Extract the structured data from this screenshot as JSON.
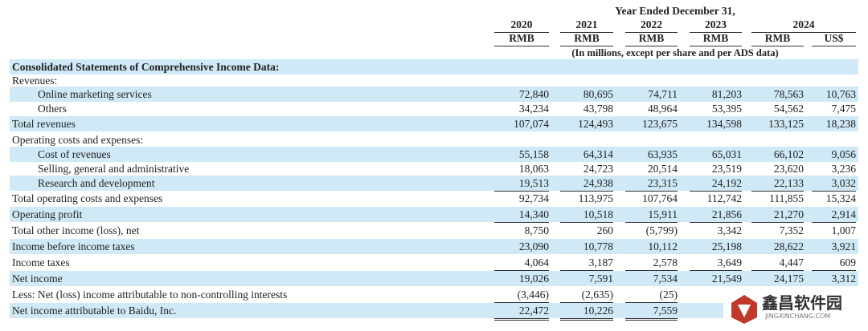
{
  "header": {
    "title": "Year Ended December 31,",
    "years": [
      "2020",
      "2021",
      "2022",
      "2023",
      "2024"
    ],
    "currencies": [
      "RMB",
      "RMB",
      "RMB",
      "RMB",
      "RMB",
      "US$"
    ],
    "note": "(In millions, except per share and per ADS data)"
  },
  "table": {
    "section": "Consolidated Statements of Comprehensive Income Data:",
    "rows": [
      {
        "label": "Revenues:",
        "values": []
      },
      {
        "label": "Online marketing services",
        "values": [
          "72,840",
          "80,695",
          "74,711",
          "81,203",
          "78,563",
          "10,763"
        ]
      },
      {
        "label": "Others",
        "values": [
          "34,234",
          "43,798",
          "48,964",
          "53,395",
          "54,562",
          "7,475"
        ]
      },
      {
        "label": "Total revenues",
        "values": [
          "107,074",
          "124,493",
          "123,675",
          "134,598",
          "133,125",
          "18,238"
        ]
      },
      {
        "label": "Operating costs and expenses:",
        "values": []
      },
      {
        "label": "Cost of revenues",
        "values": [
          "55,158",
          "64,314",
          "63,935",
          "65,031",
          "66,102",
          "9,056"
        ]
      },
      {
        "label": "Selling, general and administrative",
        "values": [
          "18,063",
          "24,723",
          "20,514",
          "23,519",
          "23,620",
          "3,236"
        ]
      },
      {
        "label": "Research and development",
        "values": [
          "19,513",
          "24,938",
          "23,315",
          "24,192",
          "22,133",
          "3,032"
        ]
      },
      {
        "label": "Total operating costs and expenses",
        "values": [
          "92,734",
          "113,975",
          "107,764",
          "112,742",
          "111,855",
          "15,324"
        ]
      },
      {
        "label": "Operating profit",
        "values": [
          "14,340",
          "10,518",
          "15,911",
          "21,856",
          "21,270",
          "2,914"
        ]
      },
      {
        "label": "Total other income (loss), net",
        "values": [
          "8,750",
          "260",
          "(5,799)",
          "3,342",
          "7,352",
          "1,007"
        ]
      },
      {
        "label": "Income before income taxes",
        "values": [
          "23,090",
          "10,778",
          "10,112",
          "25,198",
          "28,622",
          "3,921"
        ]
      },
      {
        "label": "Income taxes",
        "values": [
          "4,064",
          "3,187",
          "2,578",
          "3,649",
          "4,447",
          "609"
        ]
      },
      {
        "label": "Net income",
        "values": [
          "19,026",
          "7,591",
          "7,534",
          "21,549",
          "24,175",
          "3,312"
        ]
      },
      {
        "label": "Less: Net (loss) income attributable to non-controlling interests",
        "values": [
          "(3,446)",
          "(2,635)",
          "(25)"
        ]
      },
      {
        "label": "Net income attributable to Baidu, Inc.",
        "values": [
          "22,472",
          "10,226",
          "7,559"
        ]
      }
    ]
  },
  "watermark": {
    "name": "鑫昌软件园",
    "url": "JINGXINCHANG.COM"
  }
}
